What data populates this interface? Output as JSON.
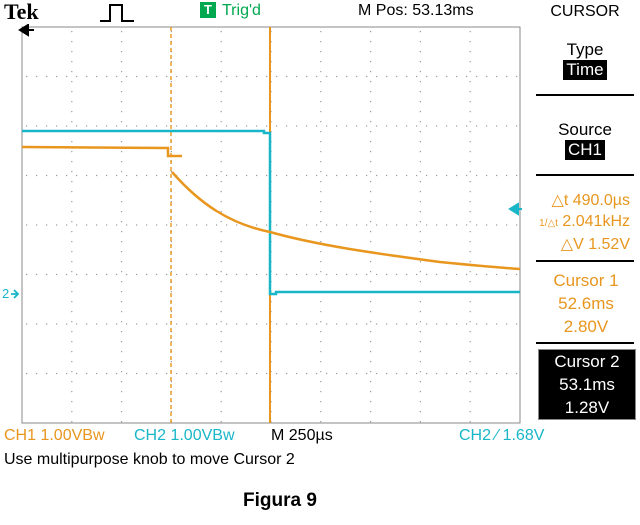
{
  "header": {
    "brand": "Tek",
    "trigger_badge": "T",
    "trigger_status": "Trig'd",
    "mpos": "M Pos: 53.13ms"
  },
  "menu": {
    "title": "CURSOR",
    "type_label": "Type",
    "type_value": "Time",
    "source_label": "Source",
    "source_value": "CH1",
    "delta_t": "490.0µs",
    "inv_delta_t": "2.041kHz",
    "delta_v": "1.52V",
    "cursor1": {
      "label": "Cursor 1",
      "time": "52.6ms",
      "volts": "2.80V"
    },
    "cursor2": {
      "label": "Cursor 2",
      "time": "53.1ms",
      "volts": "1.28V"
    }
  },
  "markers": {
    "ch2": "2"
  },
  "bottom": {
    "ch1": "CH1  1.00VBw",
    "ch2": "CH2  1.00VBw",
    "timebase": "M 250µs",
    "trigger": "CH2 ∕ 1.68V"
  },
  "status": "Use multipurpose knob to move Cursor 2",
  "caption": "Figura 9",
  "colors": {
    "ch1": "#e8961e",
    "ch2": "#19b6c8",
    "graticule": "#aaaaaa"
  }
}
